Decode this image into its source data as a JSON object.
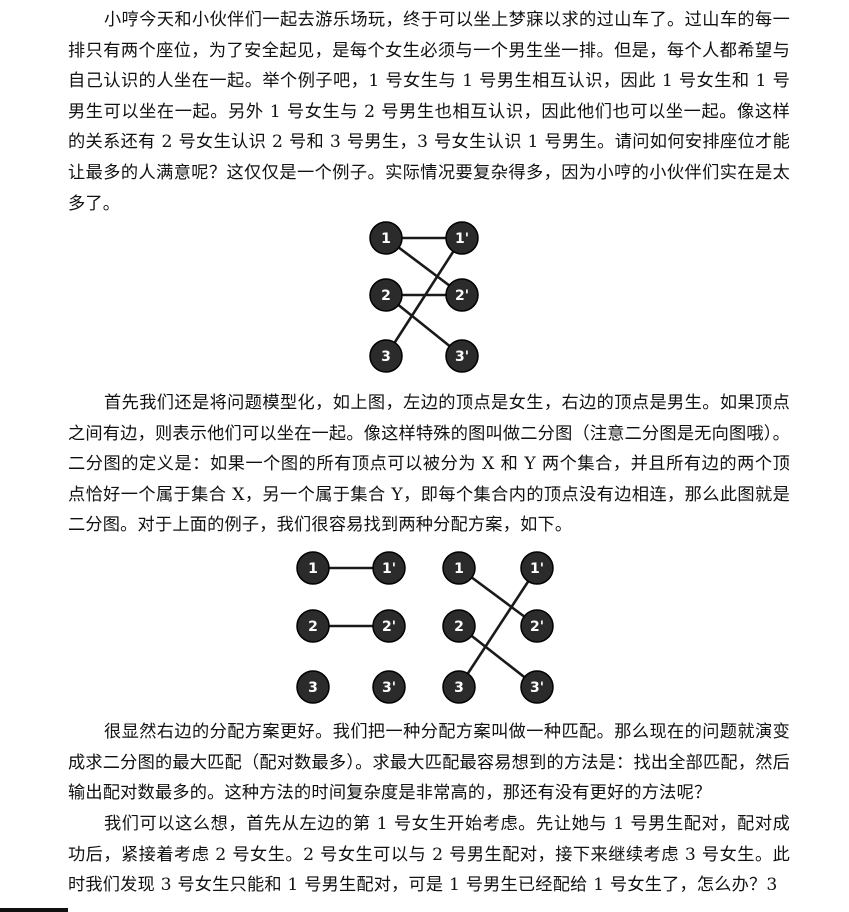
{
  "paragraphs": [
    "小哼今天和小伙伴们一起去游乐场玩，终于可以坐上梦寐以求的过山车了。过山车的每一排只有两个座位，为了安全起见，是每个女生必须与一个男生坐一排。但是，每个人都希望与自己认识的人坐在一起。举个例子吧，1 号女生与 1 号男生相互认识，因此 1 号女生和 1 号男生可以坐在一起。另外 1 号女生与 2 号男生也相互认识，因此他们也可以坐一起。像这样的关系还有 2 号女生认识 2 号和 3 号男生，3 号女生认识 1 号男生。请问如何安排座位才能让最多的人满意呢？这仅仅是一个例子。实际情况要复杂得多，因为小哼的小伙伴们实在是太多了。",
    "首先我们还是将问题模型化，如上图，左边的顶点是女生，右边的顶点是男生。如果顶点之间有边，则表示他们可以坐在一起。像这样特殊的图叫做二分图（注意二分图是无向图哦）。二分图的定义是：如果一个图的所有顶点可以被分为 X 和 Y 两个集合，并且所有边的两个顶点恰好一个属于集合 X，另一个属于集合 Y，即每个集合内的顶点没有边相连，那么此图就是二分图。对于上面的例子，我们很容易找到两种分配方案，如下。",
    "很显然右边的分配方案更好。我们把一种分配方案叫做一种匹配。那么现在的问题就演变成求二分图的最大匹配（配对数最多）。求最大匹配最容易想到的方法是：找出全部匹配，然后输出配对数最多的。这种方法的时间复杂度是非常高的，那还有没有更好的方法呢？",
    "我们可以这么想，首先从左边的第 1 号女生开始考虑。先让她与 1 号男生配对，配对成功后，紧接着考虑 2 号女生。2 号女生可以与 2 号男生配对，接下来继续考虑 3 号女生。此时我们发现 3 号女生只能和 1 号男生配对，可是 1 号男生已经配给 1 号女生了，怎么办？3"
  ],
  "graphs": {
    "node_labels": {
      "left": [
        "1",
        "2",
        "3"
      ],
      "right": [
        "1'",
        "2'",
        "3'"
      ]
    },
    "full_graph_edges": [
      [
        1,
        1
      ],
      [
        1,
        2
      ],
      [
        2,
        2
      ],
      [
        2,
        3
      ],
      [
        3,
        1
      ]
    ],
    "matching_a_edges": [
      [
        1,
        1
      ],
      [
        2,
        2
      ]
    ],
    "matching_b_edges": [
      [
        1,
        2
      ],
      [
        2,
        3
      ],
      [
        3,
        1
      ]
    ]
  }
}
